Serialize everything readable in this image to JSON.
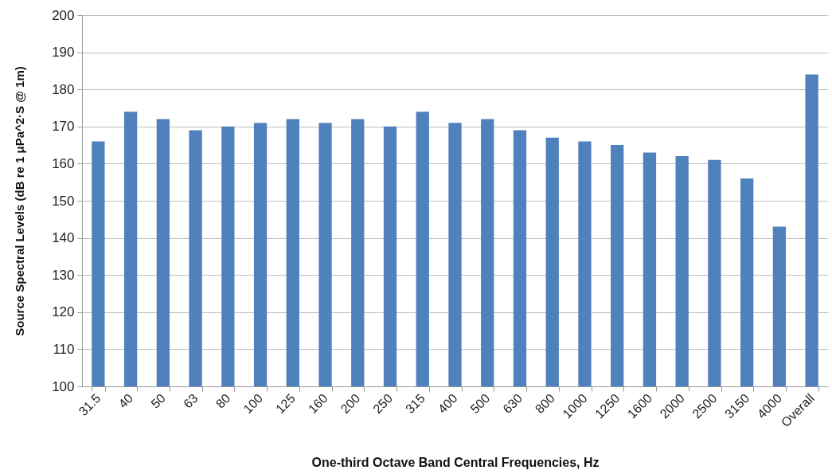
{
  "chart_data": {
    "type": "bar",
    "xlabel": "One-third Octave Band Central Frequencies, Hz",
    "ylabel": "Source Spectral Levels (dB re 1 μPa^2·S @ 1m)",
    "categories": [
      "31.5",
      "40",
      "50",
      "63",
      "80",
      "100",
      "125",
      "160",
      "200",
      "250",
      "315",
      "400",
      "500",
      "630",
      "800",
      "1000",
      "1250",
      "1600",
      "2000",
      "2500",
      "3150",
      "4000",
      "Overall"
    ],
    "values": [
      166,
      174,
      172,
      169,
      170,
      171,
      172,
      171,
      172,
      170,
      174,
      171,
      172,
      169,
      167,
      166,
      165,
      163,
      162,
      161,
      156,
      143,
      184
    ],
    "color": "#4f81bd",
    "ylim": [
      100,
      200
    ],
    "yticks": [
      100,
      110,
      120,
      130,
      140,
      150,
      160,
      170,
      180,
      190,
      200
    ],
    "grid": "y"
  }
}
